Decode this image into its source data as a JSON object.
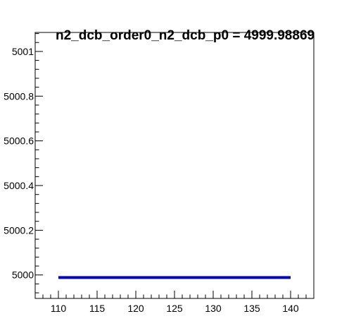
{
  "chart_data": {
    "type": "line",
    "title": "n2_dcb_order0_n2_dcb_p0 = 4999.98869",
    "xlabel": "",
    "ylabel": "",
    "xlim": [
      107,
      143
    ],
    "ylim": [
      4999.895,
      5001.085
    ],
    "x_ticks": [
      110,
      115,
      120,
      125,
      130,
      135,
      140
    ],
    "x_tick_labels": [
      "110",
      "115",
      "120",
      "125",
      "130",
      "135",
      "140"
    ],
    "y_ticks": [
      5000,
      5000.2,
      5000.4,
      5000.6,
      5000.8,
      5001
    ],
    "y_tick_labels": [
      "5000",
      "5000.2",
      "5000.4",
      "5000.6",
      "5000.8",
      "5001"
    ],
    "series": [
      {
        "color": "#0000cc",
        "x": [
          110,
          140
        ],
        "y": [
          4999.98869,
          4999.98869
        ]
      }
    ],
    "grid": false,
    "legend": "none"
  }
}
